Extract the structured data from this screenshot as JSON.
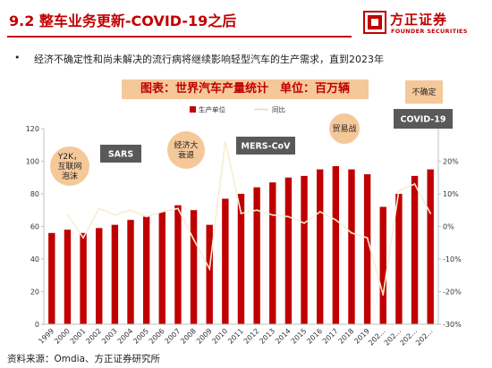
{
  "header": {
    "title": "9.2 整车业务更新-COVID-19之后",
    "logo_cn": "方正证券",
    "logo_en": "FOUNDER SECURITIES"
  },
  "bullet": {
    "marker": "•",
    "text": "经济不确定性和尚未解决的流行病将继续影响轻型汽车的生产需求，直到2023年"
  },
  "chart_banner": "图表：世界汽车产量统计　单位：百万辆",
  "source": "资料来源：Omdia、方正证券研究所",
  "colors": {
    "accent": "#c00000",
    "line": "#f7eed3",
    "banner_bg": "#f5c89a",
    "note_bg": "#f5c89a",
    "box_bg": "#595959"
  },
  "chart_data": {
    "type": "bar",
    "categories": [
      "1999",
      "2000",
      "2001",
      "2002",
      "2003",
      "2004",
      "2005",
      "2006",
      "2007",
      "2008",
      "2009",
      "2010",
      "2011",
      "2012",
      "2013",
      "2014",
      "2015",
      "2016",
      "2017",
      "2018",
      "2019",
      "202...",
      "202...",
      "202...",
      "202..."
    ],
    "series": [
      {
        "name": "生产单位",
        "type": "bar",
        "axis": "left",
        "values": [
          56,
          58,
          56,
          59,
          61,
          64,
          66,
          69,
          73,
          70,
          61,
          77,
          80,
          84,
          87,
          90,
          91,
          95,
          97,
          95,
          92,
          72,
          80,
          91,
          95
        ]
      },
      {
        "name": "同比",
        "type": "line",
        "axis": "right",
        "values": [
          null,
          3.5,
          -3.5,
          5.5,
          3.5,
          5,
          3,
          4.5,
          5.5,
          -4,
          -13,
          26,
          4,
          5,
          3.5,
          3,
          1,
          4.5,
          2,
          -2,
          -3.5,
          -21,
          11,
          13,
          4
        ]
      }
    ],
    "y_left": {
      "min": 0,
      "max": 120,
      "ticks": [
        0,
        20,
        40,
        60,
        80,
        100,
        120
      ]
    },
    "y_right": {
      "min": -30,
      "max": 30,
      "ticks": [
        "-30%",
        "-20%",
        "-10%",
        "0%",
        "10%",
        "20%"
      ],
      "tick_values": [
        -30,
        -20,
        -10,
        0,
        10,
        20
      ]
    },
    "legend": {
      "position": "top",
      "items": [
        "生产单位",
        "同比"
      ]
    },
    "annotations": {
      "y2k": "Y2K，互联网泡沫",
      "sars": "SARS",
      "crisis": "经济大衰退",
      "mers": "MERS-CoV",
      "trade": "贸易战",
      "uncertain": "不确定",
      "covid": "COVID-19"
    }
  }
}
